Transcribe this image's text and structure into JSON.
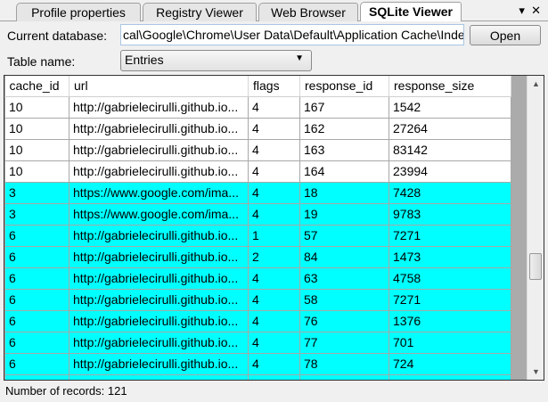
{
  "tabs": [
    {
      "label": "Profile properties"
    },
    {
      "label": "Registry Viewer"
    },
    {
      "label": "Web Browser"
    },
    {
      "label": "SQLite Viewer",
      "active": true
    }
  ],
  "window_controls": {
    "menu": "▾",
    "close": "✕"
  },
  "database": {
    "label": "Current database:",
    "value": "cal\\Google\\Chrome\\User Data\\Default\\Application Cache\\Index",
    "open_label": "Open"
  },
  "table_name": {
    "label": "Table name:",
    "value": "Entries"
  },
  "grid": {
    "columns": [
      "cache_id",
      "url",
      "flags",
      "response_id",
      "response_size"
    ],
    "rows": [
      [
        "10",
        "http://gabrielecirulli.github.io...",
        "4",
        "167",
        "1542"
      ],
      [
        "10",
        "http://gabrielecirulli.github.io...",
        "4",
        "162",
        "27264"
      ],
      [
        "10",
        "http://gabrielecirulli.github.io...",
        "4",
        "163",
        "83142"
      ],
      [
        "10",
        "http://gabrielecirulli.github.io...",
        "4",
        "164",
        "23994"
      ],
      [
        "3",
        "https://www.google.com/ima...",
        "4",
        "18",
        "7428"
      ],
      [
        "3",
        "https://www.google.com/ima...",
        "4",
        "19",
        "9783"
      ],
      [
        "6",
        "http://gabrielecirulli.github.io...",
        "1",
        "57",
        "7271"
      ],
      [
        "6",
        "http://gabrielecirulli.github.io...",
        "2",
        "84",
        "1473"
      ],
      [
        "6",
        "http://gabrielecirulli.github.io...",
        "4",
        "63",
        "4758"
      ],
      [
        "6",
        "http://gabrielecirulli.github.io...",
        "4",
        "58",
        "7271"
      ],
      [
        "6",
        "http://gabrielecirulli.github.io...",
        "4",
        "76",
        "1376"
      ],
      [
        "6",
        "http://gabrielecirulli.github.io...",
        "4",
        "77",
        "701"
      ],
      [
        "6",
        "http://gabrielecirulli.github.io...",
        "4",
        "78",
        "724"
      ],
      [
        "",
        "",
        "",
        "",
        ""
      ]
    ],
    "highlight_color": "#00ffff",
    "highlighted_from_row": 4
  },
  "status": "Number of records: 121"
}
